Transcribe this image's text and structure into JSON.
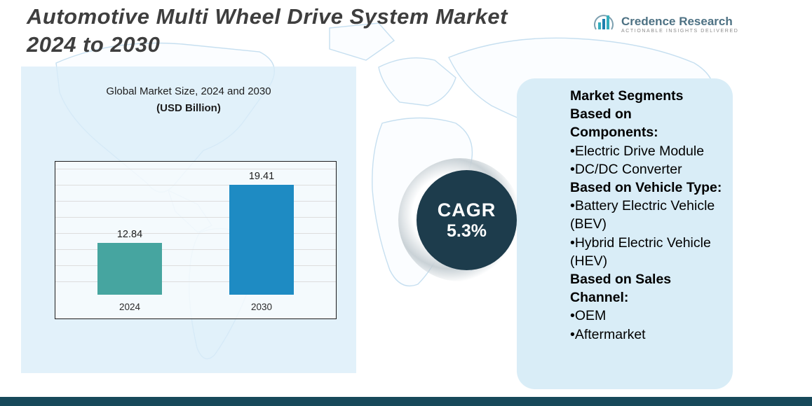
{
  "title": {
    "line1": "Automotive Multi Wheel Drive System Market",
    "line2": "2024 to 2030"
  },
  "logo": {
    "name": "Credence Research",
    "tagline": "Actionable Insights Delivered"
  },
  "chart_data": {
    "type": "bar",
    "title": "Global Market Size, 2024 and 2030",
    "subtitle": "(USD Billion)",
    "xlabel": "",
    "ylabel": "",
    "categories": [
      "2024",
      "2030"
    ],
    "values": [
      12.84,
      19.41
    ],
    "colors": [
      "#46a5a0",
      "#1e8bc3"
    ],
    "ylim": [
      7,
      22
    ],
    "grid": true,
    "legend": "none",
    "unit": "USD Billion"
  },
  "cagr": {
    "label": "CAGR",
    "value": "5.3%"
  },
  "segments": {
    "heading_components": "Market Segments Based on Components:",
    "components": [
      "•Electric Drive Module",
      "•DC/DC Converter"
    ],
    "heading_vehicle": "Based on Vehicle Type:",
    "vehicle_types": [
      "•Battery Electric Vehicle (BEV)",
      "•Hybrid Electric Vehicle (HEV)"
    ],
    "heading_sales": "Based on Sales Channel:",
    "sales_channels": [
      "•OEM",
      "•Aftermarket"
    ]
  },
  "colors": {
    "accent_dark": "#1d3c4c",
    "panel_blue": "#d9edf7",
    "bottom_bar": "#17495a",
    "bar_2024": "#46a5a0",
    "bar_2030": "#1e8bc3"
  }
}
